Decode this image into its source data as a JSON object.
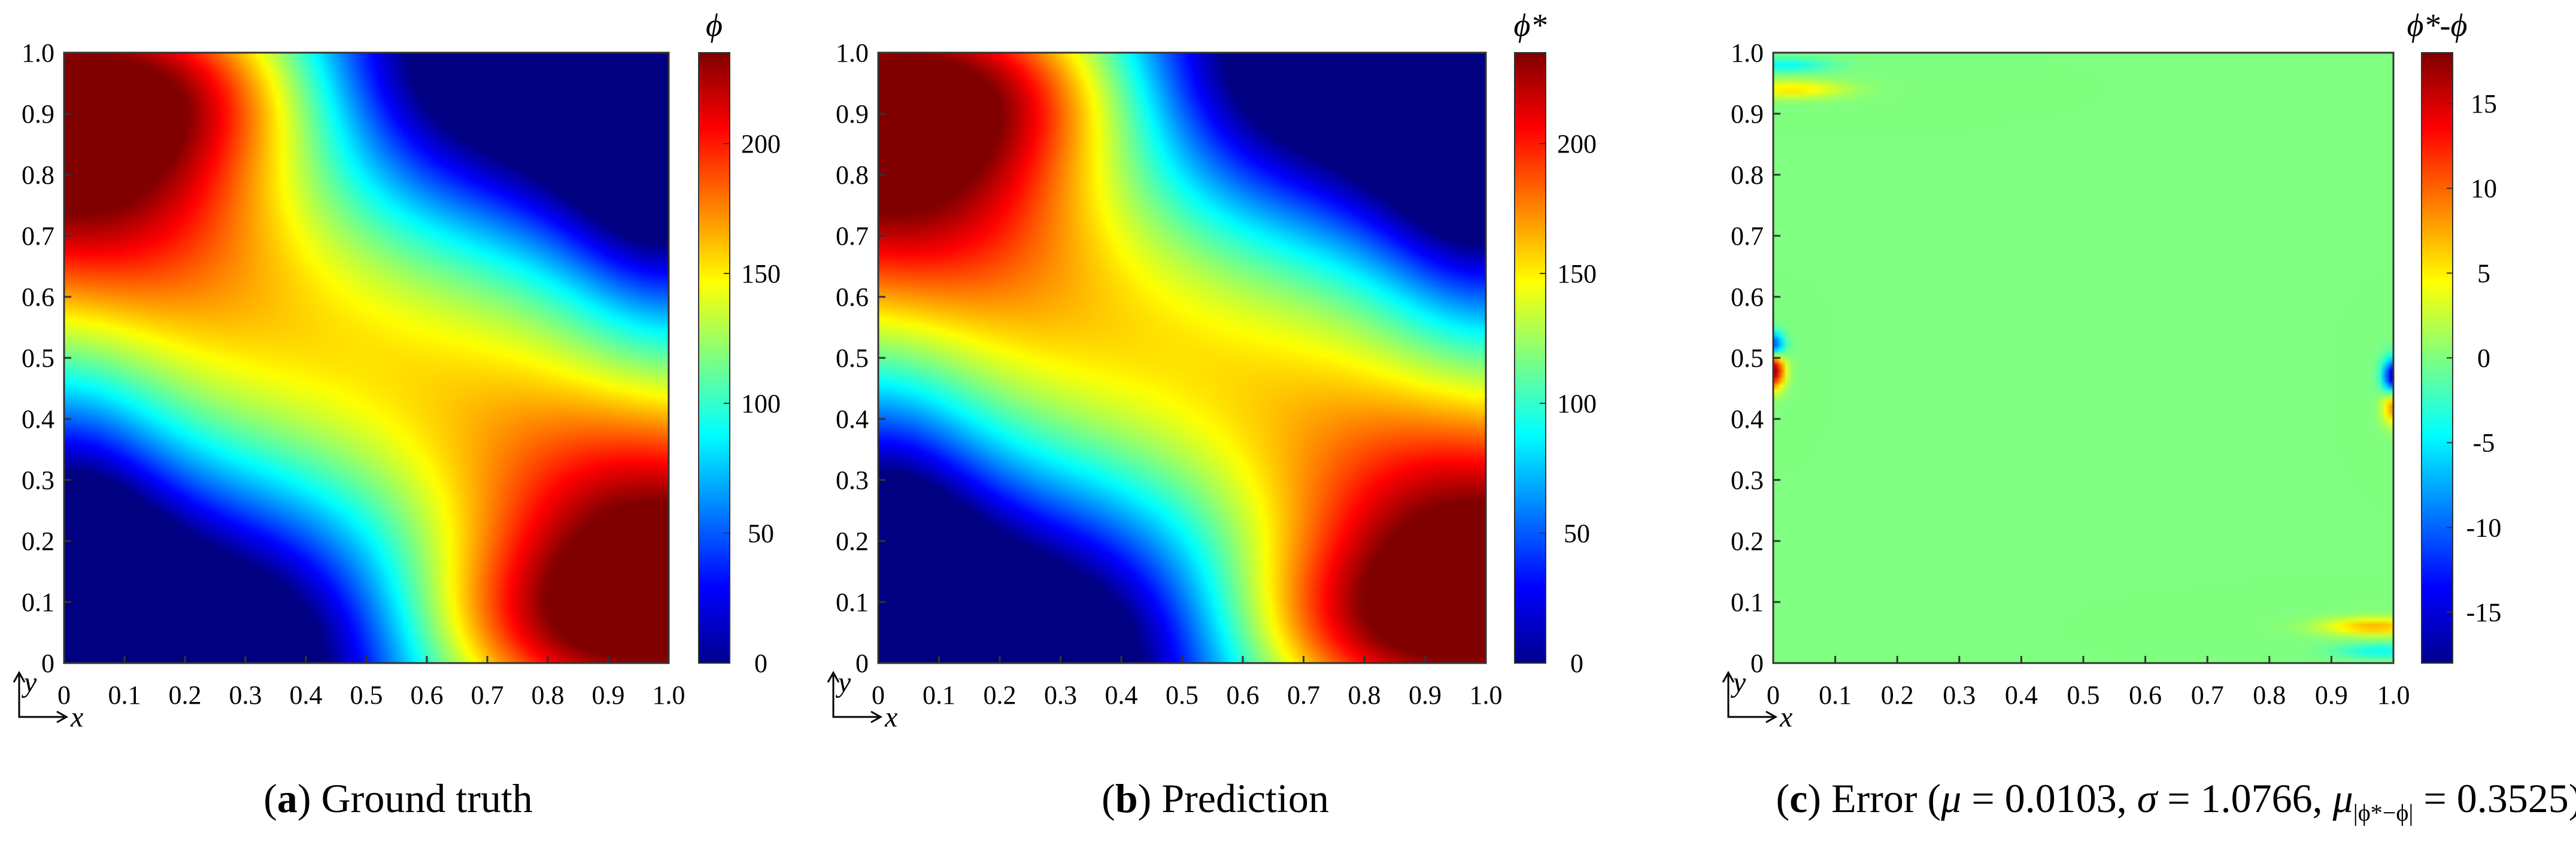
{
  "figure": {
    "panels": [
      {
        "letter": "a",
        "caption": "Ground truth",
        "colorbar_label": "ϕ"
      },
      {
        "letter": "b",
        "caption": "Prediction",
        "colorbar_label": "ϕ*"
      },
      {
        "letter": "c",
        "caption_prefix": "Error (",
        "mu_label": "μ",
        "mu_value": "0.0103",
        "sigma_label": "σ",
        "sigma_value": "1.0766",
        "abs_label": "μ",
        "abs_sub": "|ϕ*−ϕ|",
        "abs_value": "0.3525",
        "caption_suffix": ")",
        "colorbar_label": "ϕ*-ϕ"
      }
    ],
    "axis_x_letter": "x",
    "axis_y_letter": "y"
  },
  "chart_data": [
    {
      "type": "heatmap",
      "title": "",
      "xlabel": "x",
      "ylabel": "y",
      "xlim": [
        0,
        1
      ],
      "ylim": [
        0,
        1
      ],
      "xticks": [
        "0",
        "0.1",
        "0.2",
        "0.3",
        "0.4",
        "0.5",
        "0.6",
        "0.7",
        "0.8",
        "0.9",
        "1.0"
      ],
      "yticks": [
        "0",
        "0.1",
        "0.2",
        "0.3",
        "0.4",
        "0.5",
        "0.6",
        "0.7",
        "0.8",
        "0.9",
        "1.0"
      ],
      "colorbar": {
        "label": "ϕ",
        "range": [
          0,
          235
        ],
        "ticks": [
          0,
          50,
          100,
          150,
          200
        ],
        "colormap": "jet"
      },
      "field": "two-lobe swirl: high values (~235) at top-left (x=0, y~0.8-1.0) and bottom-right (x=1, y~0-0.2), low values (~0) at top-right and bottom-left corners, ~120 in the center"
    },
    {
      "type": "heatmap",
      "title": "",
      "xlabel": "x",
      "ylabel": "y",
      "xlim": [
        0,
        1
      ],
      "ylim": [
        0,
        1
      ],
      "xticks": [
        "0",
        "0.1",
        "0.2",
        "0.3",
        "0.4",
        "0.5",
        "0.6",
        "0.7",
        "0.8",
        "0.9",
        "1.0"
      ],
      "yticks": [
        "0",
        "0.1",
        "0.2",
        "0.3",
        "0.4",
        "0.5",
        "0.6",
        "0.7",
        "0.8",
        "0.9",
        "1.0"
      ],
      "colorbar": {
        "label": "ϕ*",
        "range": [
          0,
          235
        ],
        "ticks": [
          0,
          50,
          100,
          150,
          200
        ],
        "colormap": "jet"
      },
      "field": "prediction nearly identical to ground truth"
    },
    {
      "type": "heatmap",
      "title": "",
      "xlabel": "x",
      "ylabel": "y",
      "xlim": [
        0,
        1
      ],
      "ylim": [
        0,
        1
      ],
      "xticks": [
        "0",
        "0.1",
        "0.2",
        "0.3",
        "0.4",
        "0.5",
        "0.6",
        "0.7",
        "0.8",
        "0.9",
        "1.0"
      ],
      "yticks": [
        "0",
        "0.1",
        "0.2",
        "0.3",
        "0.4",
        "0.5",
        "0.6",
        "0.7",
        "0.8",
        "0.9",
        "1.0"
      ],
      "colorbar": {
        "label": "ϕ*-ϕ",
        "range": [
          -18,
          18
        ],
        "ticks": [
          -15,
          -10,
          -5,
          0,
          5,
          10,
          15
        ],
        "colormap": "jet"
      },
      "field": "error near 0 almost everywhere; localized peaks up to ~+18 at (x=0, y~0.48), ~-16 at (x=1, y~0.47), smaller streaks near the top and bottom edges"
    }
  ],
  "colors": {
    "jet": [
      "#00008f",
      "#0000ff",
      "#00ffff",
      "#7fff7f",
      "#ffff00",
      "#ff0000",
      "#800000"
    ]
  }
}
